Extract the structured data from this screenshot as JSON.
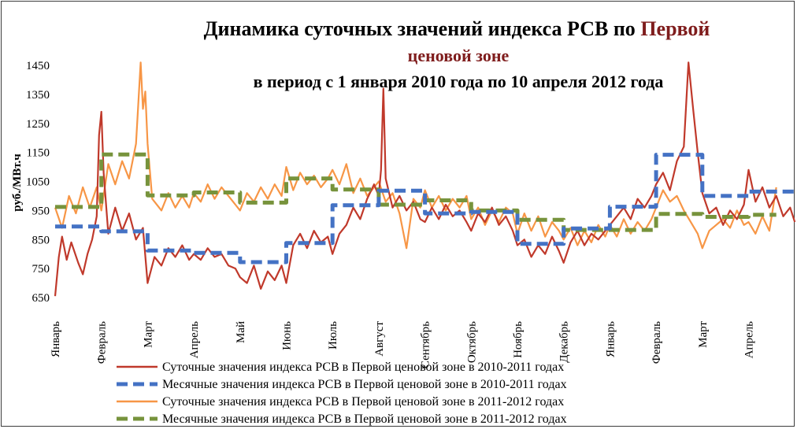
{
  "chart_data": {
    "type": "line",
    "title": {
      "line1_black": "Динамика суточных значений индекса РСВ по ",
      "line1_red": "Первой",
      "line2_red": "ценовой зоне",
      "line3": "в период с 1 января 2010 года по 10 апреля 2012 года"
    },
    "ylabel": "руб./МВт.ч",
    "ylim": [
      650,
      1450
    ],
    "yticks": [
      "1450",
      "1350",
      "1250",
      "1150",
      "1050",
      "950",
      "850",
      "750",
      "650"
    ],
    "x_categories": [
      "Январь",
      "Февраль",
      "Март",
      "Апрель",
      "Май",
      "Июнь",
      "Июль",
      "Август",
      "Сентябрь",
      "Октябрь",
      "Ноябрь",
      "Декабрь",
      "Январь",
      "Февраль",
      "Март",
      "Апрель"
    ],
    "grid": false,
    "legend_position": "bottom",
    "colors": {
      "daily_2010": "#c0392b",
      "monthly_2010": "#4472c4",
      "daily_2011": "#f79646",
      "monthly_2011": "#77933c",
      "title_red": "#7f1d1d"
    },
    "series": [
      {
        "name": "Суточные значения индекса РСВ в Первой ценовой зоне в 2010-2011 годах",
        "style": "solid",
        "color": "#c0392b",
        "points": [
          [
            0,
            655
          ],
          [
            0.08,
            790
          ],
          [
            0.15,
            860
          ],
          [
            0.25,
            780
          ],
          [
            0.35,
            840
          ],
          [
            0.5,
            770
          ],
          [
            0.6,
            730
          ],
          [
            0.7,
            800
          ],
          [
            0.8,
            850
          ],
          [
            0.9,
            930
          ],
          [
            0.95,
            1210
          ],
          [
            1.0,
            1290
          ],
          [
            1.05,
            1080
          ],
          [
            1.15,
            870
          ],
          [
            1.3,
            960
          ],
          [
            1.45,
            880
          ],
          [
            1.6,
            940
          ],
          [
            1.75,
            850
          ],
          [
            1.9,
            890
          ],
          [
            2.0,
            700
          ],
          [
            2.15,
            790
          ],
          [
            2.3,
            760
          ],
          [
            2.45,
            820
          ],
          [
            2.6,
            790
          ],
          [
            2.75,
            830
          ],
          [
            2.9,
            780
          ],
          [
            3.0,
            800
          ],
          [
            3.15,
            780
          ],
          [
            3.3,
            820
          ],
          [
            3.45,
            790
          ],
          [
            3.6,
            800
          ],
          [
            3.75,
            760
          ],
          [
            3.9,
            750
          ],
          [
            4.0,
            720
          ],
          [
            4.15,
            700
          ],
          [
            4.3,
            760
          ],
          [
            4.45,
            680
          ],
          [
            4.6,
            740
          ],
          [
            4.75,
            710
          ],
          [
            4.9,
            760
          ],
          [
            5.0,
            700
          ],
          [
            5.15,
            830
          ],
          [
            5.3,
            870
          ],
          [
            5.45,
            820
          ],
          [
            5.6,
            880
          ],
          [
            5.75,
            840
          ],
          [
            5.9,
            860
          ],
          [
            6.0,
            800
          ],
          [
            6.15,
            870
          ],
          [
            6.3,
            900
          ],
          [
            6.45,
            960
          ],
          [
            6.6,
            920
          ],
          [
            6.75,
            990
          ],
          [
            6.9,
            1040
          ],
          [
            7.0,
            1000
          ],
          [
            7.05,
            1090
          ],
          [
            7.1,
            1370
          ],
          [
            7.15,
            1060
          ],
          [
            7.3,
            960
          ],
          [
            7.45,
            1000
          ],
          [
            7.6,
            950
          ],
          [
            7.75,
            980
          ],
          [
            7.9,
            920
          ],
          [
            8.0,
            910
          ],
          [
            8.15,
            960
          ],
          [
            8.3,
            920
          ],
          [
            8.45,
            970
          ],
          [
            8.6,
            930
          ],
          [
            8.75,
            950
          ],
          [
            8.9,
            910
          ],
          [
            9.0,
            880
          ],
          [
            9.15,
            940
          ],
          [
            9.3,
            910
          ],
          [
            9.45,
            960
          ],
          [
            9.6,
            900
          ],
          [
            9.75,
            930
          ],
          [
            9.9,
            880
          ],
          [
            10.0,
            830
          ],
          [
            10.15,
            850
          ],
          [
            10.3,
            790
          ],
          [
            10.45,
            830
          ],
          [
            10.6,
            800
          ],
          [
            10.75,
            860
          ],
          [
            10.9,
            810
          ],
          [
            11.0,
            770
          ],
          [
            11.15,
            840
          ],
          [
            11.3,
            880
          ],
          [
            11.45,
            830
          ],
          [
            11.6,
            870
          ],
          [
            11.75,
            850
          ],
          [
            11.9,
            880
          ],
          [
            12.0,
            900
          ],
          [
            12.15,
            930
          ],
          [
            12.3,
            960
          ],
          [
            12.45,
            920
          ],
          [
            12.6,
            990
          ],
          [
            12.75,
            960
          ],
          [
            12.9,
            1000
          ],
          [
            13.0,
            1040
          ],
          [
            13.15,
            1080
          ],
          [
            13.3,
            1020
          ],
          [
            13.45,
            1120
          ],
          [
            13.6,
            1170
          ],
          [
            13.7,
            1460
          ],
          [
            13.8,
            1300
          ],
          [
            13.9,
            1150
          ],
          [
            14.0,
            1010
          ],
          [
            14.15,
            940
          ],
          [
            14.3,
            960
          ],
          [
            14.45,
            900
          ],
          [
            14.6,
            950
          ],
          [
            14.75,
            920
          ],
          [
            14.9,
            970
          ],
          [
            15.0,
            1090
          ],
          [
            15.15,
            980
          ],
          [
            15.3,
            1030
          ],
          [
            15.45,
            960
          ],
          [
            15.6,
            1000
          ],
          [
            15.75,
            930
          ],
          [
            15.9,
            960
          ],
          [
            16.0,
            910
          ]
        ]
      },
      {
        "name": "Месячные значения индекса РСВ в Первой ценовой зоне в 2010-2011 годах",
        "style": "dashed",
        "color": "#4472c4",
        "points": [
          [
            0,
            895
          ],
          [
            1,
            895
          ],
          [
            1,
            878
          ],
          [
            2,
            878
          ],
          [
            2,
            812
          ],
          [
            3,
            812
          ],
          [
            3,
            804
          ],
          [
            4,
            804
          ],
          [
            4,
            772
          ],
          [
            5,
            772
          ],
          [
            5,
            838
          ],
          [
            6,
            838
          ],
          [
            6,
            968
          ],
          [
            7,
            968
          ],
          [
            7,
            1018
          ],
          [
            8,
            1018
          ],
          [
            8,
            940
          ],
          [
            9,
            940
          ],
          [
            9,
            945
          ],
          [
            10,
            945
          ],
          [
            10,
            835
          ],
          [
            11,
            835
          ],
          [
            11,
            888
          ],
          [
            12,
            888
          ],
          [
            12,
            963
          ],
          [
            13,
            963
          ],
          [
            13,
            1142
          ],
          [
            14,
            1142
          ],
          [
            14,
            1000
          ],
          [
            15,
            1000
          ],
          [
            15,
            1015
          ],
          [
            16,
            1015
          ]
        ]
      },
      {
        "name": "Суточные значения индекса РСВ в Первой ценовой зоне в 2011-2012 годах",
        "style": "solid",
        "color": "#f79646",
        "points": [
          [
            0,
            960
          ],
          [
            0.15,
            890
          ],
          [
            0.3,
            1000
          ],
          [
            0.45,
            940
          ],
          [
            0.6,
            1030
          ],
          [
            0.75,
            960
          ],
          [
            0.9,
            1030
          ],
          [
            1.0,
            950
          ],
          [
            1.15,
            1110
          ],
          [
            1.3,
            1040
          ],
          [
            1.45,
            1120
          ],
          [
            1.6,
            1060
          ],
          [
            1.75,
            1180
          ],
          [
            1.85,
            1460
          ],
          [
            1.9,
            1300
          ],
          [
            1.95,
            1360
          ],
          [
            2.0,
            1180
          ],
          [
            2.1,
            990
          ],
          [
            2.3,
            950
          ],
          [
            2.45,
            1010
          ],
          [
            2.6,
            960
          ],
          [
            2.75,
            1000
          ],
          [
            2.9,
            960
          ],
          [
            3.0,
            1010
          ],
          [
            3.15,
            980
          ],
          [
            3.3,
            1040
          ],
          [
            3.45,
            990
          ],
          [
            3.6,
            1030
          ],
          [
            3.75,
            1000
          ],
          [
            3.9,
            970
          ],
          [
            4.0,
            950
          ],
          [
            4.15,
            1010
          ],
          [
            4.3,
            980
          ],
          [
            4.45,
            1030
          ],
          [
            4.6,
            990
          ],
          [
            4.75,
            1040
          ],
          [
            4.9,
            1000
          ],
          [
            5.0,
            1100
          ],
          [
            5.15,
            1020
          ],
          [
            5.3,
            1080
          ],
          [
            5.45,
            1040
          ],
          [
            5.6,
            1070
          ],
          [
            5.75,
            1030
          ],
          [
            5.9,
            1060
          ],
          [
            6.0,
            1090
          ],
          [
            6.15,
            1040
          ],
          [
            6.3,
            1110
          ],
          [
            6.45,
            1010
          ],
          [
            6.6,
            1060
          ],
          [
            6.75,
            1000
          ],
          [
            6.9,
            1030
          ],
          [
            7.0,
            1050
          ],
          [
            7.15,
            980
          ],
          [
            7.3,
            1010
          ],
          [
            7.45,
            940
          ],
          [
            7.6,
            820
          ],
          [
            7.75,
            990
          ],
          [
            7.9,
            960
          ],
          [
            8.0,
            1020
          ],
          [
            8.15,
            960
          ],
          [
            8.3,
            1000
          ],
          [
            8.45,
            950
          ],
          [
            8.6,
            990
          ],
          [
            8.75,
            960
          ],
          [
            8.9,
            1000
          ],
          [
            9.0,
            920
          ],
          [
            9.15,
            960
          ],
          [
            9.3,
            900
          ],
          [
            9.45,
            950
          ],
          [
            9.6,
            910
          ],
          [
            9.75,
            960
          ],
          [
            9.9,
            940
          ],
          [
            10.0,
            870
          ],
          [
            10.15,
            940
          ],
          [
            10.3,
            880
          ],
          [
            10.45,
            930
          ],
          [
            10.6,
            860
          ],
          [
            10.75,
            910
          ],
          [
            10.9,
            880
          ],
          [
            11.0,
            850
          ],
          [
            11.15,
            890
          ],
          [
            11.3,
            830
          ],
          [
            11.45,
            880
          ],
          [
            11.6,
            840
          ],
          [
            11.75,
            900
          ],
          [
            11.9,
            860
          ],
          [
            12.0,
            900
          ],
          [
            12.15,
            860
          ],
          [
            12.3,
            920
          ],
          [
            12.45,
            870
          ],
          [
            12.6,
            910
          ],
          [
            12.75,
            880
          ],
          [
            12.9,
            920
          ],
          [
            13.0,
            960
          ],
          [
            13.15,
            1020
          ],
          [
            13.3,
            980
          ],
          [
            13.45,
            1000
          ],
          [
            13.6,
            950
          ],
          [
            13.75,
            910
          ],
          [
            13.9,
            870
          ],
          [
            14.0,
            820
          ],
          [
            14.15,
            880
          ],
          [
            14.3,
            900
          ],
          [
            14.45,
            920
          ],
          [
            14.6,
            890
          ],
          [
            14.75,
            950
          ],
          [
            14.9,
            900
          ],
          [
            15.0,
            910
          ],
          [
            15.15,
            870
          ],
          [
            15.3,
            930
          ],
          [
            15.45,
            880
          ],
          [
            15.6,
            1030
          ]
        ]
      },
      {
        "name": "Месячные значения индекса РСВ в Первой ценовой зоне в 2011-2012 годах",
        "style": "dashed",
        "color": "#77933c",
        "points": [
          [
            0,
            962
          ],
          [
            1,
            962
          ],
          [
            1,
            1143
          ],
          [
            2,
            1143
          ],
          [
            2,
            1002
          ],
          [
            3,
            1002
          ],
          [
            3,
            1012
          ],
          [
            4,
            1012
          ],
          [
            4,
            977
          ],
          [
            5,
            977
          ],
          [
            5,
            1060
          ],
          [
            6,
            1060
          ],
          [
            6,
            1022
          ],
          [
            7,
            1022
          ],
          [
            7,
            970
          ],
          [
            8,
            970
          ],
          [
            8,
            985
          ],
          [
            9,
            985
          ],
          [
            9,
            950
          ],
          [
            10,
            950
          ],
          [
            10,
            918
          ],
          [
            11,
            918
          ],
          [
            11,
            883
          ],
          [
            12,
            883
          ],
          [
            12,
            883
          ],
          [
            13,
            883
          ],
          [
            13,
            938
          ],
          [
            14,
            938
          ],
          [
            14,
            928
          ],
          [
            15,
            928
          ],
          [
            15,
            935
          ],
          [
            15.6,
            935
          ]
        ]
      }
    ]
  }
}
